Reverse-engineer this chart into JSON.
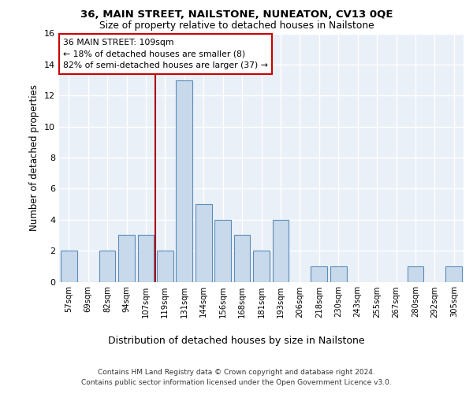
{
  "title1": "36, MAIN STREET, NAILSTONE, NUNEATON, CV13 0QE",
  "title2": "Size of property relative to detached houses in Nailstone",
  "xlabel": "Distribution of detached houses by size in Nailstone",
  "ylabel": "Number of detached properties",
  "bin_labels": [
    "57sqm",
    "69sqm",
    "82sqm",
    "94sqm",
    "107sqm",
    "119sqm",
    "131sqm",
    "144sqm",
    "156sqm",
    "168sqm",
    "181sqm",
    "193sqm",
    "206sqm",
    "218sqm",
    "230sqm",
    "243sqm",
    "255sqm",
    "267sqm",
    "280sqm",
    "292sqm",
    "305sqm"
  ],
  "bar_heights": [
    2,
    0,
    2,
    3,
    3,
    2,
    13,
    5,
    4,
    3,
    2,
    4,
    0,
    1,
    1,
    0,
    0,
    0,
    1,
    0,
    1
  ],
  "bar_color": "#c8d9ec",
  "bar_edge_color": "#5b8db8",
  "red_line_x": 4.5,
  "red_line_color": "#aa0000",
  "annotation_text_line1": "36 MAIN STREET: 109sqm",
  "annotation_text_line2": "← 18% of detached houses are smaller (8)",
  "annotation_text_line3": "82% of semi-detached houses are larger (37) →",
  "annotation_box_color": "#ffffff",
  "annotation_box_edge": "#cc0000",
  "footer1": "Contains HM Land Registry data © Crown copyright and database right 2024.",
  "footer2": "Contains public sector information licensed under the Open Government Licence v3.0.",
  "ylim": [
    0,
    16
  ],
  "yticks": [
    0,
    2,
    4,
    6,
    8,
    10,
    12,
    14,
    16
  ],
  "background_color": "#eaf0f8",
  "grid_color": "#ffffff"
}
